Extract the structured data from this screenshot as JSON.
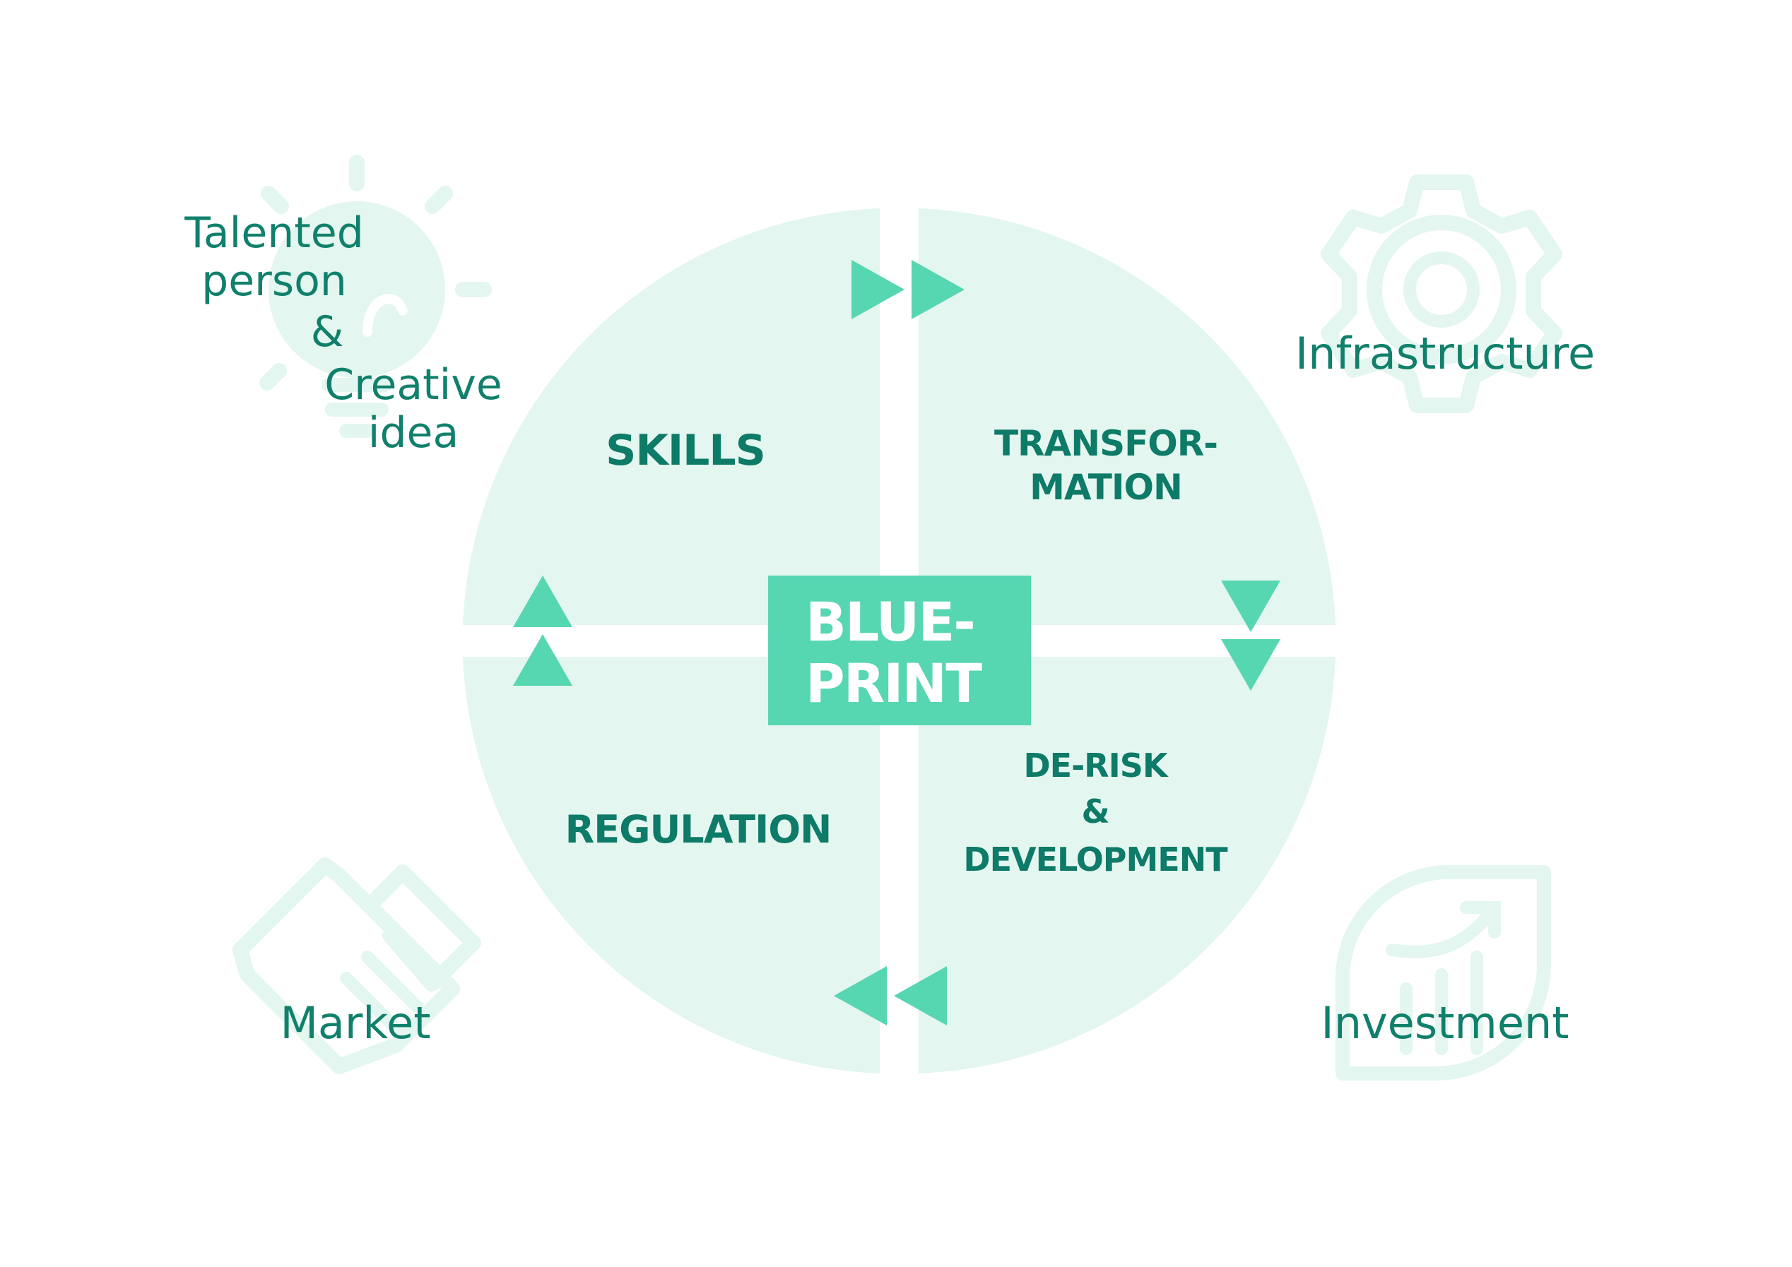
{
  "quadrants": {
    "skills": [
      "SKILLS"
    ],
    "transformation": [
      "TRANSFOR-",
      "MATION"
    ],
    "regulation": [
      "REGULATION"
    ],
    "derisk": [
      "DE-RISK",
      "&",
      "DEVELOPMENT"
    ]
  },
  "center": [
    "BLUE-",
    "PRINT"
  ],
  "corners": {
    "top_left": [
      "Talented",
      "person",
      "&",
      "Creative",
      "idea"
    ],
    "top_right": [
      "Infrastructure"
    ],
    "bottom_left": [
      "Market"
    ],
    "bottom_right": [
      "Investment"
    ]
  },
  "icons": {
    "top_left": "lightbulb-icon",
    "top_right": "gear-icon",
    "bottom_left": "handshake-icon",
    "bottom_right": "growth-chart-icon"
  },
  "colors": {
    "circle_fill": "#e3f6ef",
    "accent": "#57d6b2",
    "text": "#0e7a68",
    "icon": "#e3f6ef"
  }
}
